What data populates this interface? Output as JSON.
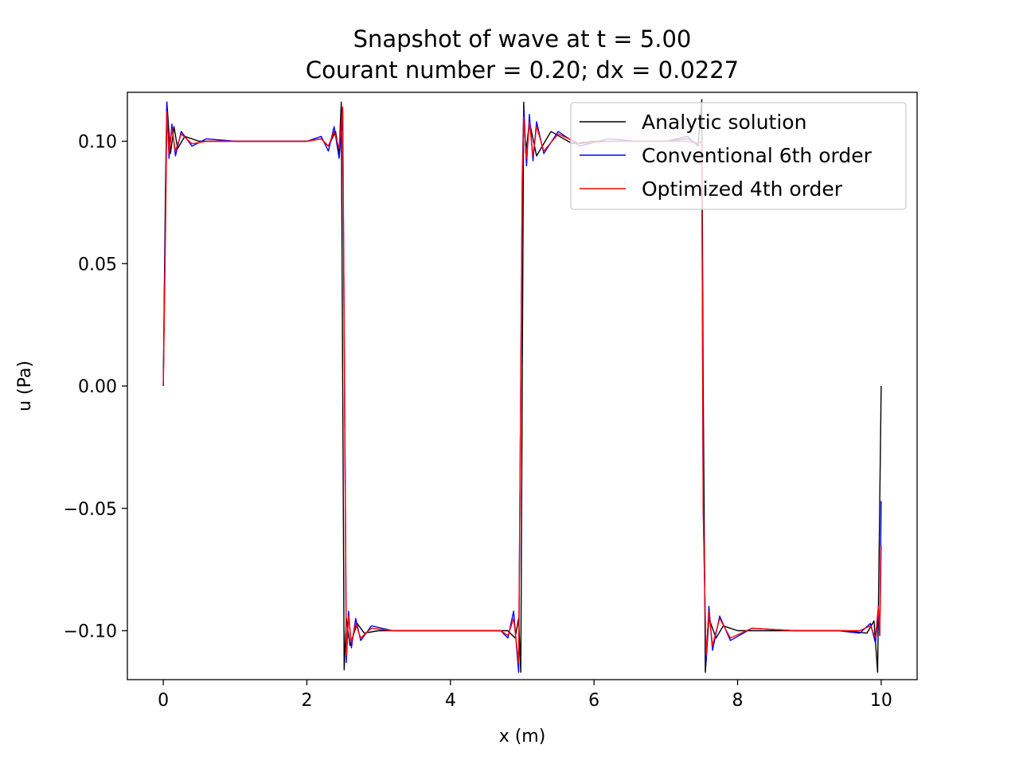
{
  "chart_data": {
    "type": "line",
    "title": "Snapshot of wave at t = 5.00",
    "subtitle": "Courant number = 0.20; dx = 0.0227",
    "xlabel": "x (m)",
    "ylabel": "u (Pa)",
    "xlim": [
      -0.5,
      10.5
    ],
    "ylim": [
      -0.12,
      0.12
    ],
    "xticks": [
      0,
      2,
      4,
      6,
      8,
      10
    ],
    "xtick_labels": [
      "0",
      "2",
      "4",
      "6",
      "8",
      "10"
    ],
    "yticks": [
      0.1,
      0.05,
      0.0,
      -0.05,
      -0.1
    ],
    "ytick_labels": [
      "0.10",
      "0.05",
      "0.00",
      "−0.05",
      "−0.10"
    ],
    "grid": false,
    "legend_position": "top-right",
    "series": [
      {
        "name": "Analytic solution",
        "color": "#000000",
        "x": [
          0.0,
          0.03,
          0.05,
          0.1,
          0.15,
          0.2,
          0.3,
          0.5,
          1.0,
          1.5,
          2.0,
          2.2,
          2.3,
          2.4,
          2.45,
          2.48,
          2.5,
          2.52,
          2.55,
          2.6,
          2.7,
          2.8,
          3.0,
          3.5,
          4.0,
          4.5,
          4.8,
          4.9,
          4.95,
          4.98,
          5.0,
          5.02,
          5.05,
          5.1,
          5.2,
          5.4,
          5.7,
          6.0,
          6.5,
          7.0,
          7.3,
          7.45,
          7.5,
          7.52,
          7.55,
          7.6,
          7.7,
          7.8,
          8.0,
          8.5,
          9.0,
          9.5,
          9.8,
          9.9,
          9.95,
          10.0
        ],
        "y": [
          0.0,
          0.08,
          0.116,
          0.095,
          0.106,
          0.097,
          0.102,
          0.1,
          0.1,
          0.1,
          0.1,
          0.101,
          0.098,
          0.104,
          0.095,
          0.116,
          0.0,
          -0.116,
          -0.095,
          -0.106,
          -0.097,
          -0.101,
          -0.1,
          -0.1,
          -0.1,
          -0.1,
          -0.1,
          -0.103,
          -0.095,
          -0.117,
          0.0,
          0.116,
          0.095,
          0.108,
          0.094,
          0.104,
          0.099,
          0.1,
          0.1,
          0.1,
          0.102,
          0.098,
          0.117,
          0.0,
          -0.117,
          -0.095,
          -0.103,
          -0.098,
          -0.1,
          -0.1,
          -0.1,
          -0.1,
          -0.101,
          -0.096,
          -0.117,
          0.0
        ]
      },
      {
        "name": "Conventional 6th order",
        "color": "#0000ff",
        "x": [
          0.0,
          0.03,
          0.05,
          0.08,
          0.12,
          0.17,
          0.25,
          0.4,
          0.6,
          1.0,
          1.5,
          2.0,
          2.2,
          2.3,
          2.38,
          2.45,
          2.5,
          2.55,
          2.58,
          2.62,
          2.68,
          2.75,
          2.9,
          3.2,
          4.0,
          4.5,
          4.7,
          4.8,
          4.88,
          4.95,
          5.0,
          5.02,
          5.06,
          5.1,
          5.15,
          5.2,
          5.3,
          5.5,
          5.8,
          6.2,
          6.6,
          7.0,
          7.3,
          7.45,
          7.5,
          7.52,
          7.56,
          7.6,
          7.65,
          7.75,
          7.9,
          8.2,
          8.8,
          9.4,
          9.7,
          9.85,
          9.92,
          9.96,
          9.98,
          10.0
        ],
        "y": [
          0.0,
          0.07,
          0.116,
          0.093,
          0.107,
          0.094,
          0.104,
          0.098,
          0.101,
          0.1,
          0.1,
          0.1,
          0.102,
          0.096,
          0.106,
          0.093,
          0.11,
          -0.113,
          -0.092,
          -0.107,
          -0.095,
          -0.104,
          -0.098,
          -0.1,
          -0.1,
          -0.1,
          -0.1,
          -0.103,
          -0.092,
          -0.117,
          0.085,
          0.113,
          0.09,
          0.111,
          0.092,
          0.108,
          0.095,
          0.104,
          0.098,
          0.101,
          0.1,
          0.1,
          0.101,
          0.099,
          0.1,
          -0.05,
          -0.113,
          -0.09,
          -0.108,
          -0.094,
          -0.104,
          -0.099,
          -0.1,
          -0.1,
          -0.101,
          -0.097,
          -0.105,
          -0.093,
          -0.102,
          -0.047
        ]
      },
      {
        "name": "Optimized 4th order",
        "color": "#ff0000",
        "x": [
          0.0,
          0.03,
          0.05,
          0.08,
          0.12,
          0.17,
          0.25,
          0.4,
          0.6,
          1.0,
          1.5,
          2.0,
          2.2,
          2.3,
          2.38,
          2.45,
          2.5,
          2.55,
          2.58,
          2.62,
          2.68,
          2.75,
          2.9,
          3.2,
          4.0,
          4.5,
          4.7,
          4.8,
          4.88,
          4.95,
          5.0,
          5.02,
          5.06,
          5.1,
          5.15,
          5.2,
          5.3,
          5.5,
          5.8,
          6.2,
          6.6,
          7.0,
          7.3,
          7.45,
          7.5,
          7.52,
          7.56,
          7.6,
          7.65,
          7.75,
          7.9,
          8.2,
          8.8,
          9.4,
          9.7,
          9.85,
          9.92,
          9.96,
          9.98,
          10.0
        ],
        "y": [
          0.0,
          0.06,
          0.112,
          0.095,
          0.105,
          0.096,
          0.103,
          0.099,
          0.1,
          0.1,
          0.1,
          0.1,
          0.101,
          0.098,
          0.104,
          0.097,
          0.114,
          -0.11,
          -0.094,
          -0.105,
          -0.097,
          -0.103,
          -0.099,
          -0.1,
          -0.1,
          -0.1,
          -0.1,
          -0.102,
          -0.095,
          -0.113,
          0.08,
          0.11,
          0.093,
          0.108,
          0.094,
          0.106,
          0.096,
          0.103,
          0.099,
          0.1,
          0.1,
          0.1,
          0.1,
          0.099,
          0.1,
          -0.05,
          -0.11,
          -0.092,
          -0.106,
          -0.095,
          -0.103,
          -0.099,
          -0.1,
          -0.1,
          -0.1,
          -0.098,
          -0.103,
          -0.09,
          -0.101,
          -0.065
        ]
      }
    ]
  }
}
